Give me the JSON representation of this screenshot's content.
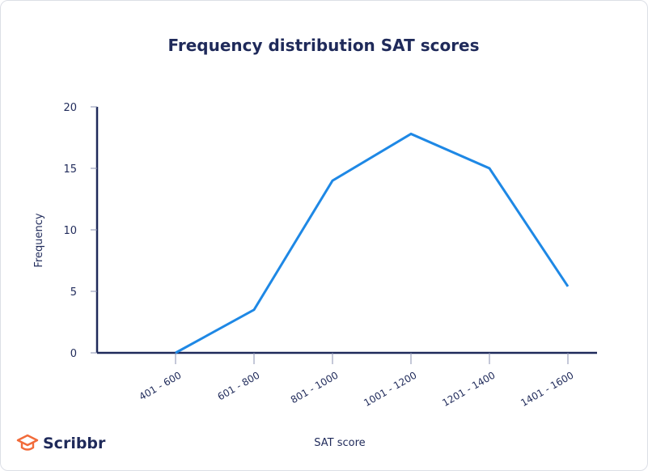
{
  "chart_data": {
    "type": "line",
    "title": "Frequency distribution SAT scores",
    "xlabel": "SAT score",
    "ylabel": "Frequency",
    "categories": [
      "401 - 600",
      "601 - 800",
      "801 - 1000",
      "1001 - 1200",
      "1201 - 1400",
      "1401 - 1600"
    ],
    "values": [
      0,
      3.5,
      14,
      17.8,
      15,
      5.4
    ],
    "ylim": [
      0,
      20
    ],
    "yticks": [
      0,
      5,
      10,
      15,
      20
    ],
    "grid": false,
    "colors": {
      "line": "#1e88e5",
      "axis": "#1f2a5a",
      "text": "#1f2a5a"
    }
  },
  "brand": {
    "name": "Scribbr",
    "color": "#f26b3a"
  }
}
